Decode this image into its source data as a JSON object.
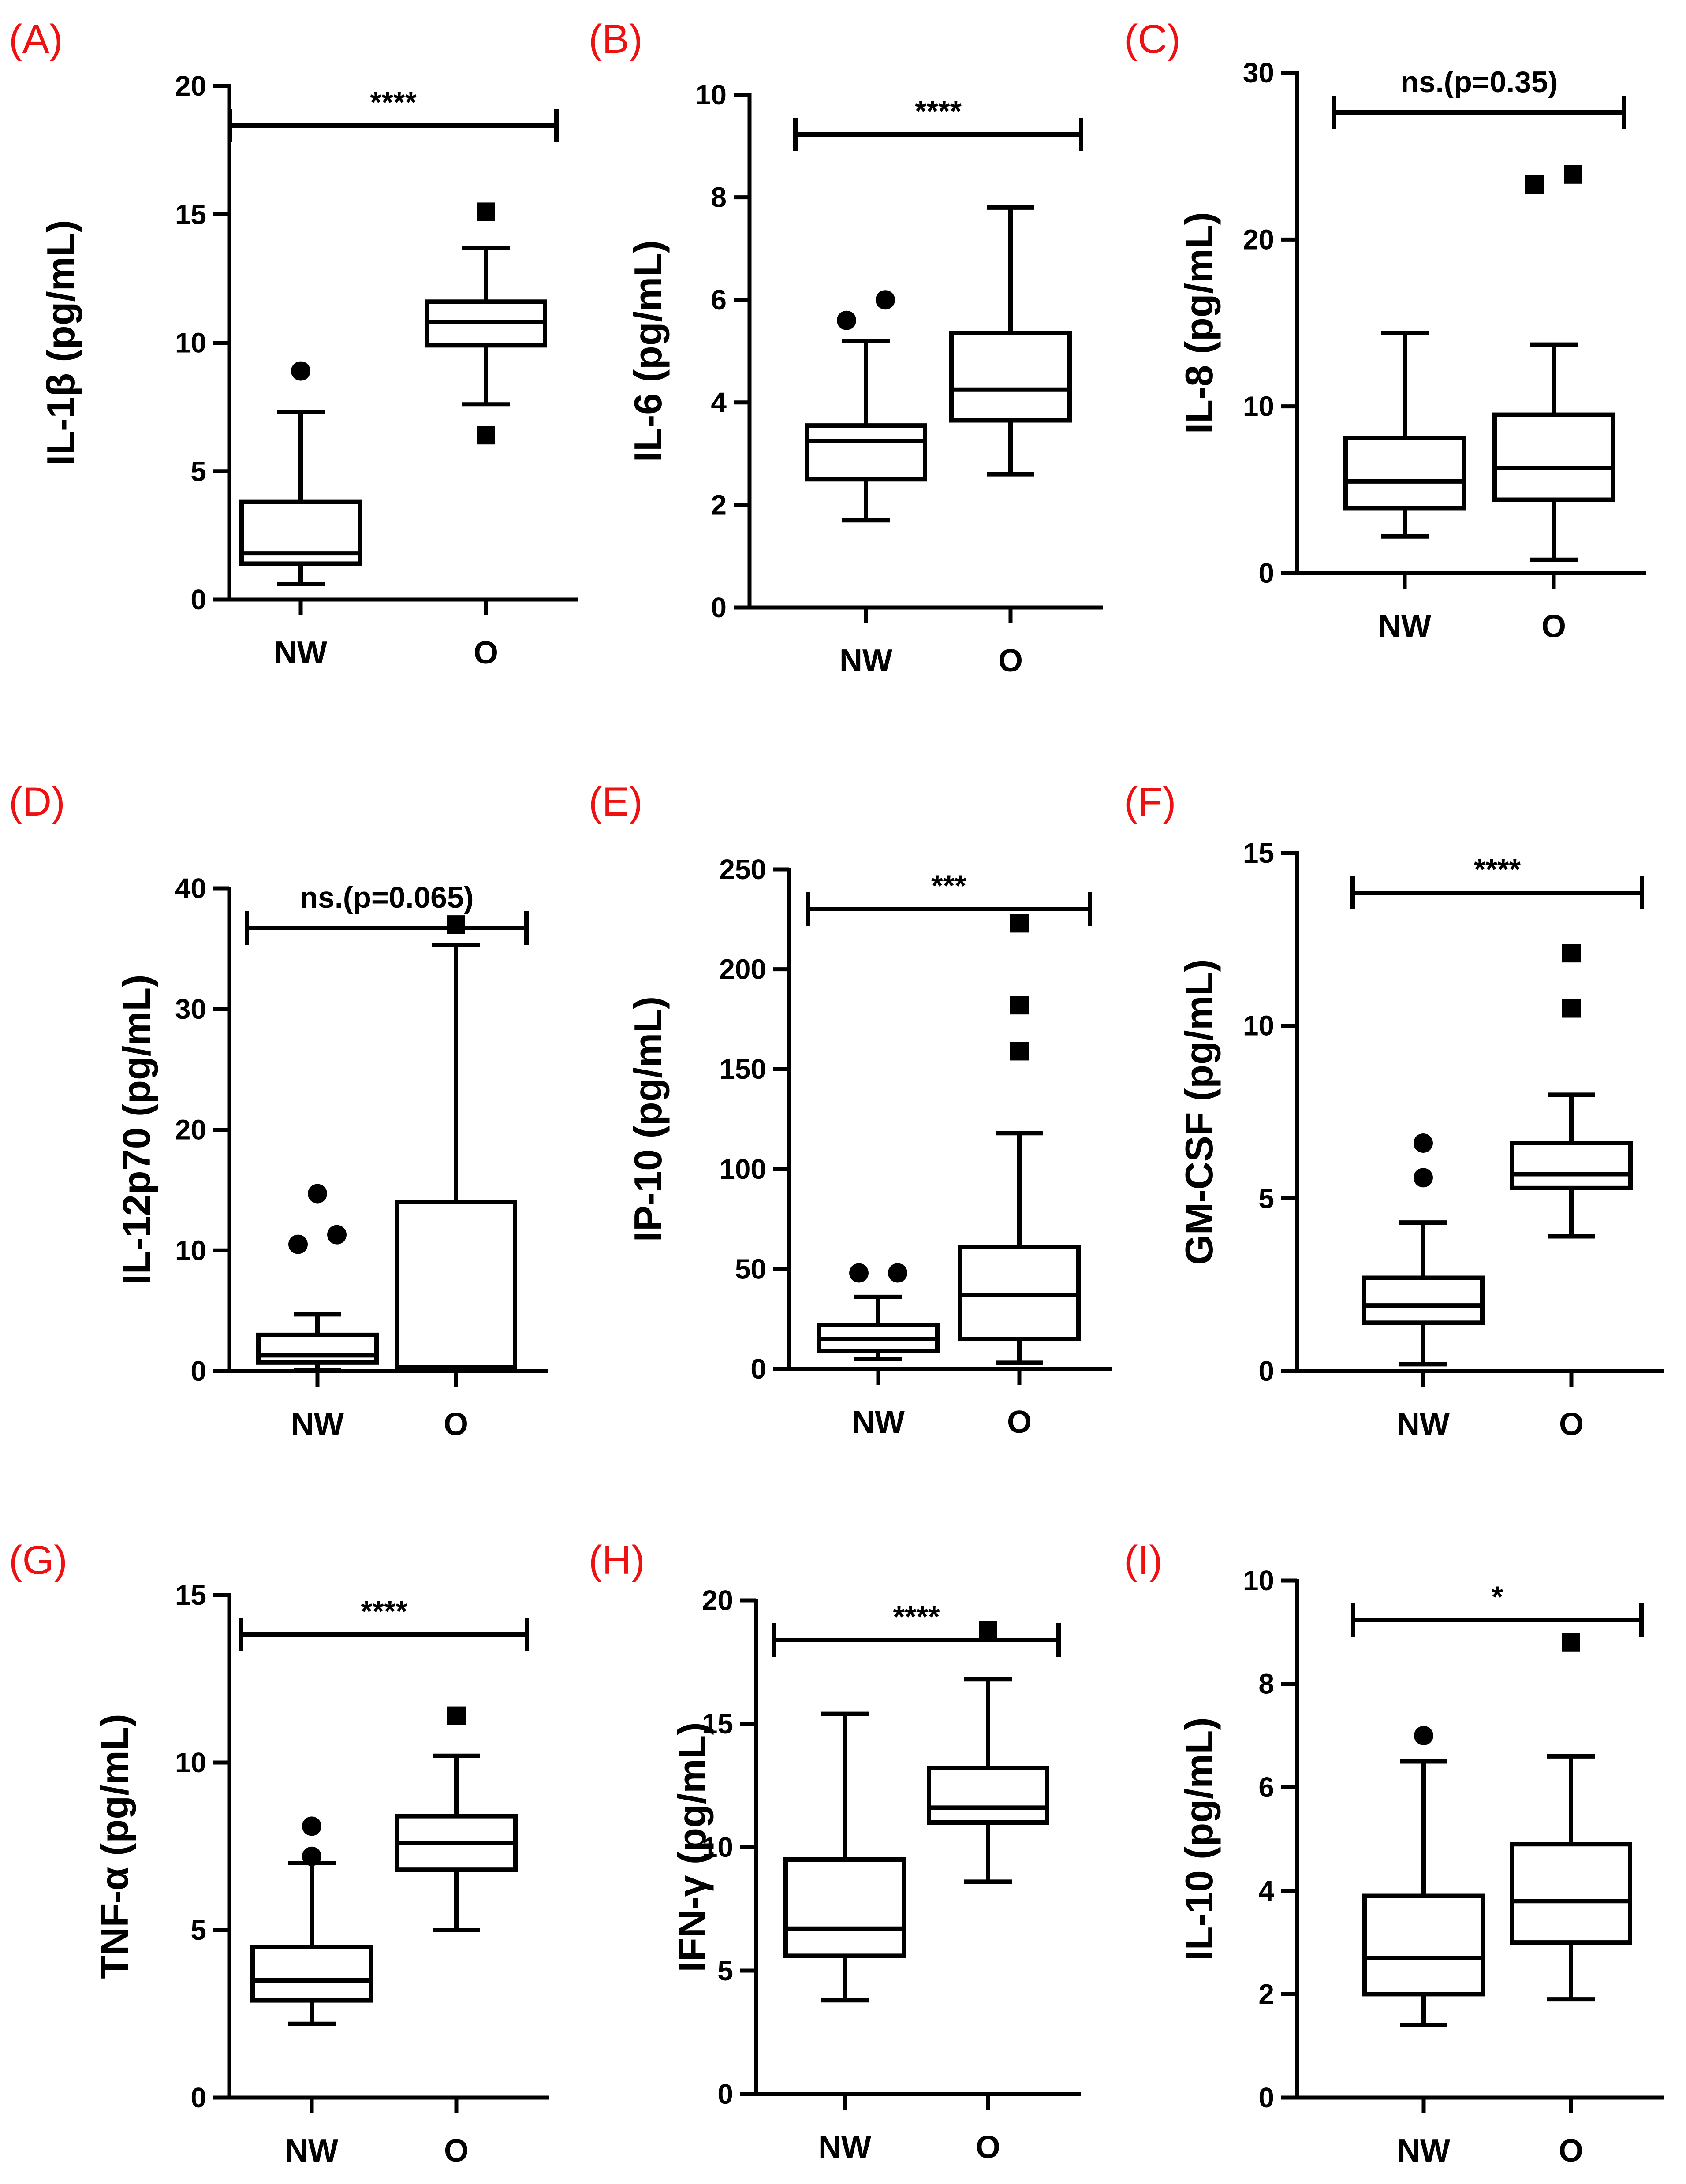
{
  "chart_data": [
    {
      "panel": "(A)",
      "type": "box",
      "ylabel": "IL-1β (pg/mL)",
      "ylim": [
        0,
        20
      ],
      "yticks": [
        0,
        5,
        10,
        15,
        20
      ],
      "categories": [
        "NW",
        "O"
      ],
      "significance": "****",
      "groups": [
        {
          "name": "NW",
          "min": 0.6,
          "q1": 1.4,
          "median": 1.8,
          "q3": 3.8,
          "max": 7.3,
          "outliers": [
            8.9
          ],
          "outlier_marker": "circle"
        },
        {
          "name": "O",
          "min": 7.6,
          "q1": 9.9,
          "median": 10.8,
          "q3": 11.6,
          "max": 13.7,
          "outliers": [
            15.1,
            6.4
          ],
          "outlier_marker": "square"
        }
      ]
    },
    {
      "panel": "(B)",
      "type": "box",
      "ylabel": "IL-6 (pg/mL)",
      "ylim": [
        0,
        10
      ],
      "yticks": [
        0,
        2,
        4,
        6,
        8,
        10
      ],
      "categories": [
        "NW",
        "O"
      ],
      "significance": "****",
      "groups": [
        {
          "name": "NW",
          "min": 1.7,
          "q1": 2.5,
          "median": 3.25,
          "q3": 3.55,
          "max": 5.2,
          "outliers": [
            5.6,
            6.0
          ],
          "outlier_marker": "circle"
        },
        {
          "name": "O",
          "min": 2.6,
          "q1": 3.65,
          "median": 4.25,
          "q3": 5.35,
          "max": 7.8,
          "outliers": [],
          "outlier_marker": "square"
        }
      ]
    },
    {
      "panel": "(C)",
      "type": "box",
      "ylabel": "IL-8 (pg/mL)",
      "ylim": [
        0,
        30
      ],
      "yticks": [
        0,
        10,
        20,
        30
      ],
      "categories": [
        "NW",
        "O"
      ],
      "significance": "ns.(p=0.35)",
      "groups": [
        {
          "name": "NW",
          "min": 2.2,
          "q1": 3.9,
          "median": 5.5,
          "q3": 8.1,
          "max": 14.4,
          "outliers": [],
          "outlier_marker": "circle"
        },
        {
          "name": "O",
          "min": 0.8,
          "q1": 4.4,
          "median": 6.3,
          "q3": 9.5,
          "max": 13.7,
          "outliers": [
            23.3,
            23.9
          ],
          "outlier_marker": "square"
        }
      ]
    },
    {
      "panel": "(D)",
      "type": "box",
      "ylabel": "IL-12p70 (pg/mL)",
      "ylim": [
        0,
        40
      ],
      "yticks": [
        0,
        10,
        20,
        30,
        40
      ],
      "categories": [
        "NW",
        "O"
      ],
      "significance": "ns.(p=0.065)",
      "groups": [
        {
          "name": "NW",
          "min": 0.1,
          "q1": 0.7,
          "median": 1.3,
          "q3": 3.0,
          "max": 4.7,
          "outliers": [
            10.5,
            11.3,
            14.7
          ],
          "outlier_marker": "circle"
        },
        {
          "name": "O",
          "min": 0.2,
          "q1": 0.2,
          "median": 0.3,
          "q3": 14.0,
          "max": 35.3,
          "outliers": [
            37.0
          ],
          "outlier_marker": "square"
        }
      ]
    },
    {
      "panel": "(E)",
      "type": "box",
      "ylabel": "IP-10 (pg/mL)",
      "ylim": [
        0,
        250
      ],
      "yticks": [
        0,
        50,
        100,
        150,
        200,
        250
      ],
      "categories": [
        "NW",
        "O"
      ],
      "significance": "***",
      "groups": [
        {
          "name": "NW",
          "min": 5,
          "q1": 9,
          "median": 15,
          "q3": 22,
          "max": 36,
          "outliers": [
            48,
            48
          ],
          "outlier_marker": "circle"
        },
        {
          "name": "O",
          "min": 3,
          "q1": 15,
          "median": 37,
          "q3": 61,
          "max": 118,
          "outliers": [
            159,
            182,
            223
          ],
          "outlier_marker": "square"
        }
      ]
    },
    {
      "panel": "(F)",
      "type": "box",
      "ylabel": "GM-CSF (pg/mL)",
      "ylim": [
        0,
        15
      ],
      "yticks": [
        0,
        5,
        10,
        15
      ],
      "categories": [
        "NW",
        "O"
      ],
      "significance": "****",
      "groups": [
        {
          "name": "NW",
          "min": 0.2,
          "q1": 1.4,
          "median": 1.9,
          "q3": 2.7,
          "max": 4.3,
          "outliers": [
            5.6,
            6.6
          ],
          "outlier_marker": "circle"
        },
        {
          "name": "O",
          "min": 3.9,
          "q1": 5.3,
          "median": 5.7,
          "q3": 6.6,
          "max": 8.0,
          "outliers": [
            10.5,
            12.1
          ],
          "outlier_marker": "square"
        }
      ]
    },
    {
      "panel": "(G)",
      "type": "box",
      "ylabel": "TNF-α (pg/mL)",
      "ylim": [
        0,
        15
      ],
      "yticks": [
        0,
        5,
        10,
        15
      ],
      "categories": [
        "NW",
        "O"
      ],
      "significance": "****",
      "groups": [
        {
          "name": "NW",
          "min": 2.2,
          "q1": 2.9,
          "median": 3.5,
          "q3": 4.5,
          "max": 7.0,
          "outliers": [
            7.2,
            8.1
          ],
          "outlier_marker": "circle"
        },
        {
          "name": "O",
          "min": 5.0,
          "q1": 6.8,
          "median": 7.6,
          "q3": 8.4,
          "max": 10.2,
          "outliers": [
            11.4
          ],
          "outlier_marker": "square"
        }
      ]
    },
    {
      "panel": "(H)",
      "type": "box",
      "ylabel": "IFN-γ (pg/mL)",
      "ylim": [
        0,
        20
      ],
      "yticks": [
        0,
        5,
        10,
        15,
        20
      ],
      "categories": [
        "NW",
        "O"
      ],
      "significance": "****",
      "groups": [
        {
          "name": "NW",
          "min": 3.8,
          "q1": 5.6,
          "median": 6.7,
          "q3": 9.5,
          "max": 15.4,
          "outliers": [],
          "outlier_marker": "circle"
        },
        {
          "name": "O",
          "min": 8.6,
          "q1": 11.0,
          "median": 11.6,
          "q3": 13.2,
          "max": 16.8,
          "outliers": [
            18.8
          ],
          "outlier_marker": "square"
        }
      ]
    },
    {
      "panel": "(I)",
      "type": "box",
      "ylabel": "IL-10 (pg/mL)",
      "ylim": [
        0,
        10
      ],
      "yticks": [
        0,
        2,
        4,
        6,
        8,
        10
      ],
      "categories": [
        "NW",
        "O"
      ],
      "significance": "*",
      "groups": [
        {
          "name": "NW",
          "min": 1.4,
          "q1": 2.0,
          "median": 2.7,
          "q3": 3.9,
          "max": 6.5,
          "outliers": [
            7.0
          ],
          "outlier_marker": "circle"
        },
        {
          "name": "O",
          "min": 1.9,
          "q1": 3.0,
          "median": 3.8,
          "q3": 4.9,
          "max": 6.6,
          "outliers": [
            8.8
          ],
          "outlier_marker": "square"
        }
      ]
    }
  ]
}
